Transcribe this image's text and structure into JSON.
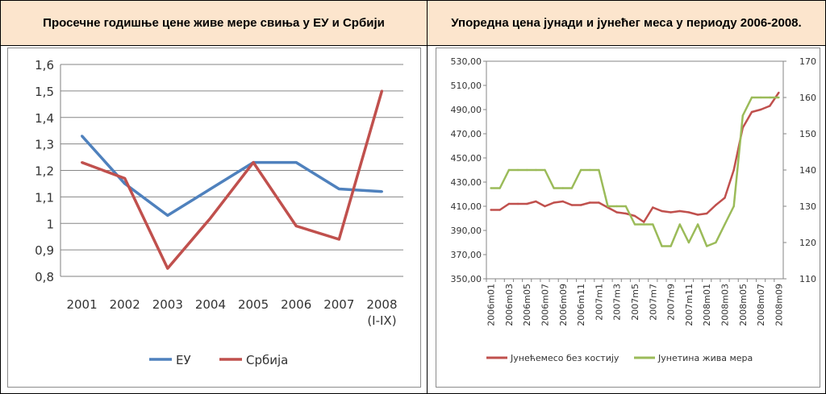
{
  "panels": {
    "left": {
      "title": "Просечне годишње цене живе мере свиња у ЕУ и Србији"
    },
    "right": {
      "title": "Упоредна цена јунади и јунећег меса у периоду 2006-2008."
    }
  },
  "chart_data": [
    {
      "type": "line",
      "title": "Просечне годишње цене живе мере свиња у ЕУ и Србији",
      "categories": [
        "2001",
        "2002",
        "2003",
        "2004",
        "2005",
        "2006",
        "2007",
        "2008\n(I-IX)"
      ],
      "ylim": [
        0.8,
        1.6
      ],
      "yticks": [
        "0,8",
        "0,9",
        "1",
        "1,1",
        "1,2",
        "1,3",
        "1,4",
        "1,5",
        "1,6"
      ],
      "grid": true,
      "legend_position": "bottom",
      "series": [
        {
          "name": "ЕУ",
          "color": "#4f81bd",
          "values": [
            1.33,
            1.15,
            1.03,
            1.13,
            1.23,
            1.23,
            1.13,
            1.12
          ]
        },
        {
          "name": "Србија",
          "color": "#c0504d",
          "values": [
            1.23,
            1.17,
            0.83,
            1.02,
            1.23,
            0.99,
            0.94,
            1.5
          ]
        }
      ]
    },
    {
      "type": "line",
      "title": "Упоредна цена јунади и јунећег меса у периоду 2006-2008.",
      "x": [
        "2006m01",
        "2006m02",
        "2006m03",
        "2006m04",
        "2006m05",
        "2006m06",
        "2006m07",
        "2006m08",
        "2006m09",
        "2006m10",
        "2006m11",
        "2006m12",
        "2007m1",
        "2007m2",
        "2007m3",
        "2007m4",
        "2007m5",
        "2007m6",
        "2007m7",
        "2007m8",
        "2007m9",
        "2007m10",
        "2007m11",
        "2007m12",
        "2008m01",
        "2008m02",
        "2008m03",
        "2008m04",
        "2008m05",
        "2008m06",
        "2008m07",
        "2008m08",
        "2008m09"
      ],
      "xtick_labels": [
        "2006m01",
        "2006m03",
        "2006m05",
        "2006m07",
        "2006m09",
        "2006m11",
        "2007m1",
        "2007m3",
        "2007m5",
        "2007m7",
        "2007m9",
        "2007m11",
        "2008m01",
        "2008m03",
        "2008m05",
        "2008m07",
        "2008m09"
      ],
      "ylim_left": [
        350,
        530
      ],
      "ylim_right": [
        110,
        170
      ],
      "yticks_left": [
        "350,00",
        "370,00",
        "390,00",
        "410,00",
        "430,00",
        "450,00",
        "470,00",
        "490,00",
        "510,00",
        "530,00"
      ],
      "yticks_right": [
        "110",
        "120",
        "130",
        "140",
        "150",
        "160",
        "170"
      ],
      "legend_position": "bottom",
      "series": [
        {
          "name": "Јунећемесо без костију",
          "axis": "left",
          "color": "#c0504d",
          "values": [
            407,
            407,
            412,
            412,
            412,
            414,
            410,
            413,
            414,
            411,
            411,
            413,
            413,
            409,
            405,
            404,
            402,
            397,
            409,
            406,
            405,
            406,
            405,
            403,
            404,
            411,
            417,
            440,
            475,
            488,
            490,
            493,
            504
          ]
        },
        {
          "name": "Јунетина жива мера",
          "axis": "right",
          "color": "#9bbb59",
          "values": [
            135,
            135,
            140,
            140,
            140,
            140,
            140,
            135,
            135,
            135,
            140,
            140,
            140,
            130,
            130,
            130,
            125,
            125,
            125,
            119,
            119,
            125,
            120,
            125,
            119,
            120,
            125,
            130,
            155,
            160,
            160,
            160,
            160
          ]
        }
      ]
    }
  ]
}
